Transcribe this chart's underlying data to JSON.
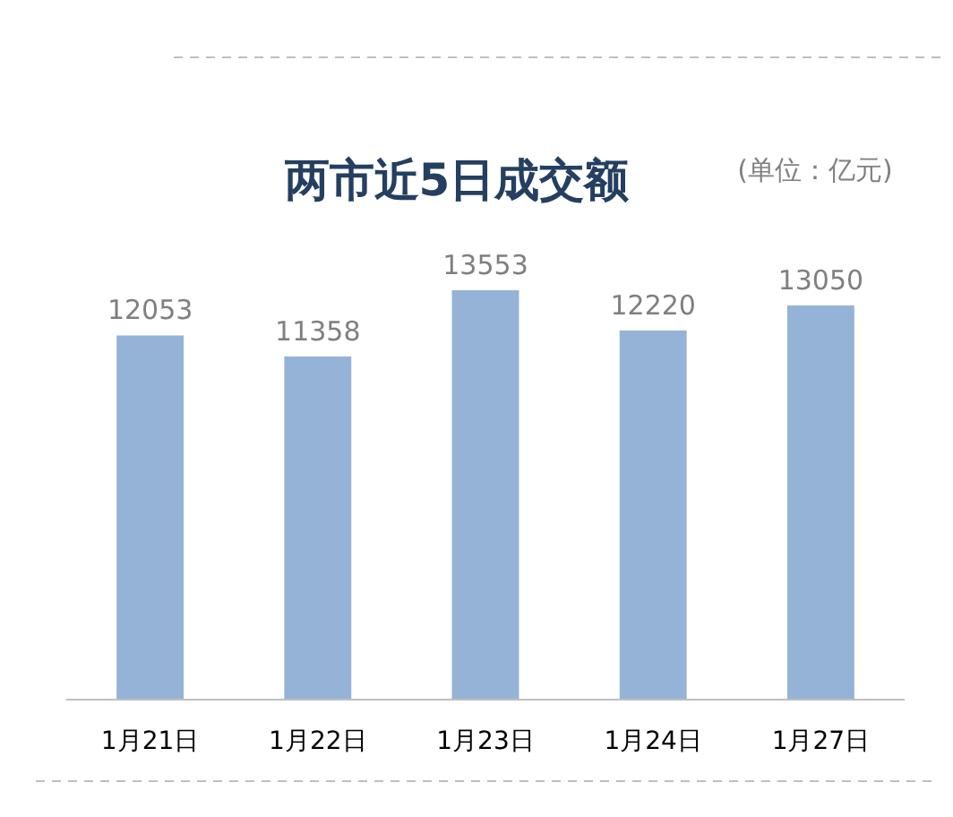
{
  "chart_data": {
    "type": "bar",
    "title": "两市近5日成交额",
    "subtitle": "(单位：亿元)",
    "categories": [
      "1月21日",
      "1月22日",
      "1月23日",
      "1月24日",
      "1月27日"
    ],
    "values": [
      12053,
      11358,
      13553,
      12220,
      13050
    ],
    "color": "#95b3d7",
    "data_labels": true
  }
}
